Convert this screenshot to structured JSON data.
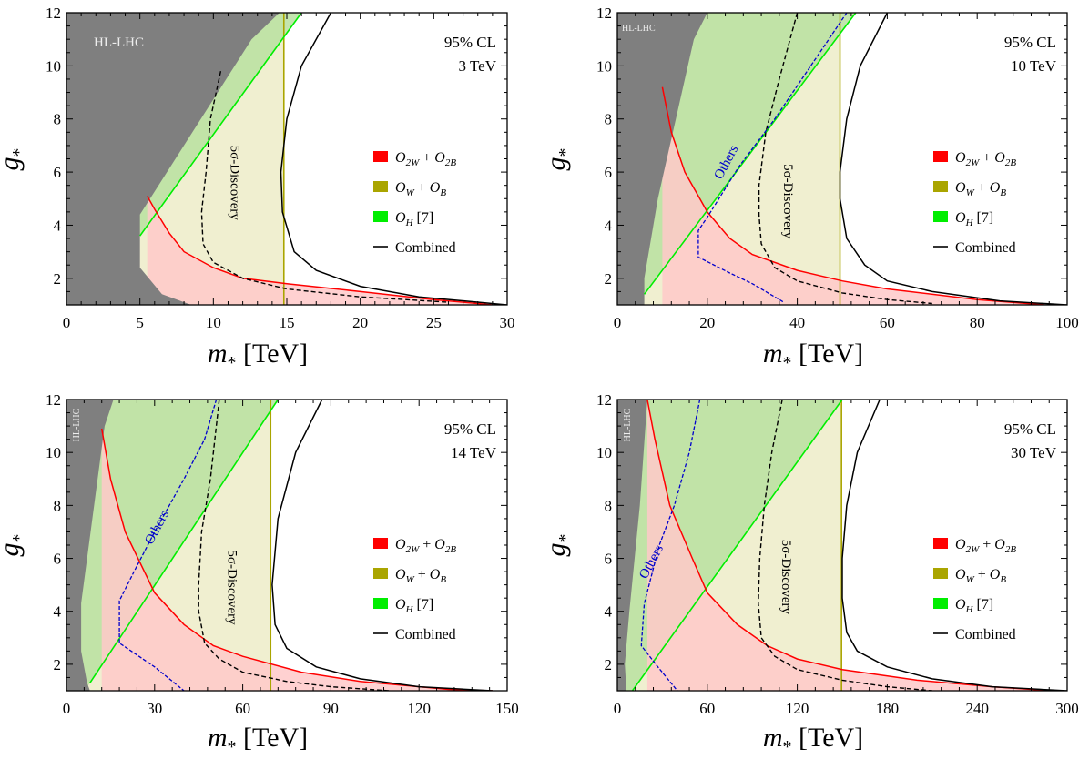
{
  "colors": {
    "hl_lhc": "#7f7f7f",
    "o2w_o2b": "#ff0000",
    "o2w_fill": "#ffc9c9",
    "ow_ob": "#aaa500",
    "ow_fill": "#f0efd0",
    "oh": "#00ee00",
    "oh_fill": "#b8e0a0",
    "combined": "#000000",
    "others": "#0000cc"
  },
  "chart_data": [
    {
      "type": "area",
      "energy": "3 TeV",
      "cl": "95% CL",
      "hl_lhc_label": "HL-LHC",
      "hl_lhc_label_vertical": false,
      "xlabel": "m_* [TeV]",
      "ylabel": "g_*",
      "xlim": [
        0,
        30
      ],
      "ylim": [
        1,
        12
      ],
      "xticks": [
        0,
        5,
        10,
        15,
        20,
        25,
        30
      ],
      "yticks": [
        2,
        4,
        6,
        8,
        10,
        12
      ],
      "legend": {
        "o2w": {
          "a": "O",
          "a_sub": "2W",
          "b": "O",
          "b_sub": "2B"
        },
        "ow": {
          "a": "O",
          "a_sub": "W",
          "b": "O",
          "b_sub": "B"
        },
        "oh": {
          "a": "O",
          "a_sub": "H",
          "ref": "[7]"
        },
        "combined": "Combined"
      },
      "discovery_label": "5σ-Discovery",
      "others_label": "",
      "discovery_label_pos": [
        11.2,
        5.6
      ],
      "others_label_pos": [],
      "hl_lhc_region": [
        [
          0,
          1
        ],
        [
          0,
          12
        ],
        [
          14.5,
          12
        ],
        [
          12.6,
          11
        ],
        [
          5,
          4.4
        ],
        [
          5,
          2.4
        ],
        [
          6.5,
          1.4
        ],
        [
          8.5,
          1
        ]
      ],
      "ow_limit": 14.8,
      "o2w_curve": [
        [
          5.5,
          5.1
        ],
        [
          6,
          4.6
        ],
        [
          7,
          3.7
        ],
        [
          8,
          3.0
        ],
        [
          10,
          2.4
        ],
        [
          12,
          2.0
        ],
        [
          15,
          1.8
        ],
        [
          20,
          1.5
        ],
        [
          25,
          1.2
        ],
        [
          29,
          1.0
        ]
      ],
      "oh_line": [
        [
          5,
          3.6
        ],
        [
          16,
          12
        ]
      ],
      "combined_curve": [
        [
          18,
          12
        ],
        [
          16,
          10
        ],
        [
          15,
          8
        ],
        [
          14.6,
          6
        ],
        [
          14.7,
          4.5
        ],
        [
          15.5,
          3
        ],
        [
          17,
          2.3
        ],
        [
          20,
          1.7
        ],
        [
          24,
          1.3
        ],
        [
          30,
          1.0
        ]
      ],
      "discovery_curve": [
        [
          10.5,
          9.8
        ],
        [
          9.8,
          8
        ],
        [
          9.5,
          6
        ],
        [
          9.2,
          4.5
        ],
        [
          9.3,
          3.3
        ],
        [
          10,
          2.6
        ],
        [
          12,
          2
        ],
        [
          15,
          1.6
        ],
        [
          20,
          1.3
        ],
        [
          26,
          1.1
        ]
      ],
      "others_curve": []
    },
    {
      "type": "area",
      "energy": "10 TeV",
      "cl": "95% CL",
      "hl_lhc_label": "HL-LHC",
      "hl_lhc_label_vertical": false,
      "xlabel": "m_* [TeV]",
      "ylabel": "g_*",
      "xlim": [
        0,
        100
      ],
      "ylim": [
        1,
        12
      ],
      "xticks": [
        0,
        20,
        40,
        60,
        80,
        100
      ],
      "yticks": [
        2,
        4,
        6,
        8,
        10,
        12
      ],
      "legend": {
        "o2w": {
          "a": "O",
          "a_sub": "2W",
          "b": "O",
          "b_sub": "2B"
        },
        "ow": {
          "a": "O",
          "a_sub": "W",
          "b": "O",
          "b_sub": "B"
        },
        "oh": {
          "a": "O",
          "a_sub": "H",
          "ref": "[7]"
        },
        "combined": "Combined"
      },
      "discovery_label": "5σ-Discovery",
      "others_label": "Others",
      "discovery_label_pos": [
        37,
        4.9
      ],
      "others_label_pos": [
        25,
        6.3
      ],
      "hl_lhc_region": [
        [
          0,
          1
        ],
        [
          0,
          12
        ],
        [
          20,
          12
        ],
        [
          17,
          11
        ],
        [
          9,
          5
        ],
        [
          6,
          2
        ],
        [
          6,
          1
        ]
      ],
      "ow_limit": 49.5,
      "o2w_curve": [
        [
          10,
          9.2
        ],
        [
          12,
          7.5
        ],
        [
          15,
          6
        ],
        [
          20,
          4.5
        ],
        [
          25,
          3.5
        ],
        [
          30,
          2.9
        ],
        [
          40,
          2.3
        ],
        [
          50,
          1.9
        ],
        [
          60,
          1.6
        ],
        [
          80,
          1.2
        ],
        [
          95,
          1.0
        ]
      ],
      "oh_line": [
        [
          6,
          1.4
        ],
        [
          53,
          12
        ]
      ],
      "combined_curve": [
        [
          60,
          12
        ],
        [
          54,
          10
        ],
        [
          51,
          8
        ],
        [
          49.5,
          6
        ],
        [
          49.5,
          5
        ],
        [
          51,
          3.5
        ],
        [
          55,
          2.5
        ],
        [
          60,
          1.9
        ],
        [
          70,
          1.5
        ],
        [
          85,
          1.15
        ],
        [
          100,
          1.0
        ]
      ],
      "discovery_curve": [
        [
          40,
          12
        ],
        [
          36,
          9.5
        ],
        [
          33,
          7.5
        ],
        [
          31.5,
          5.5
        ],
        [
          31.5,
          4.4
        ],
        [
          32,
          3.3
        ],
        [
          35,
          2.4
        ],
        [
          40,
          1.9
        ],
        [
          50,
          1.45
        ],
        [
          60,
          1.2
        ],
        [
          70,
          1.05
        ]
      ],
      "others_curve": [
        [
          51,
          12
        ],
        [
          45,
          10.5
        ],
        [
          35,
          8
        ],
        [
          27,
          6.2
        ],
        [
          20,
          4.3
        ],
        [
          18,
          3.8
        ],
        [
          18,
          2.8
        ],
        [
          25,
          2.2
        ],
        [
          30,
          1.8
        ],
        [
          37,
          1.1
        ]
      ]
    },
    {
      "type": "area",
      "energy": "14 TeV",
      "cl": "95% CL",
      "hl_lhc_label": "HL-LHC",
      "hl_lhc_label_vertical": true,
      "xlabel": "m_* [TeV]",
      "ylabel": "g_*",
      "xlim": [
        0,
        150
      ],
      "ylim": [
        1,
        12
      ],
      "xticks": [
        0,
        30,
        60,
        90,
        120,
        150
      ],
      "yticks": [
        2,
        4,
        6,
        8,
        10,
        12
      ],
      "legend": {
        "o2w": {
          "a": "O",
          "a_sub": "2W",
          "b": "O",
          "b_sub": "2B"
        },
        "ow": {
          "a": "O",
          "a_sub": "W",
          "b": "O",
          "b_sub": "B"
        },
        "oh": {
          "a": "O",
          "a_sub": "H",
          "ref": "[7]"
        },
        "combined": "Combined"
      },
      "discovery_label": "5σ-Discovery",
      "others_label": "Others",
      "discovery_label_pos": [
        55,
        4.9
      ],
      "others_label_pos": [
        32,
        7.1
      ],
      "hl_lhc_region": [
        [
          0,
          1
        ],
        [
          0,
          12
        ],
        [
          16,
          12
        ],
        [
          13,
          11
        ],
        [
          5,
          4.3
        ],
        [
          5,
          2.5
        ],
        [
          7,
          1.3
        ],
        [
          8,
          1
        ]
      ],
      "ow_limit": 69.5,
      "o2w_curve": [
        [
          12,
          10.9
        ],
        [
          15,
          9
        ],
        [
          20,
          7
        ],
        [
          30,
          4.7
        ],
        [
          40,
          3.5
        ],
        [
          50,
          2.7
        ],
        [
          60,
          2.3
        ],
        [
          80,
          1.7
        ],
        [
          100,
          1.35
        ],
        [
          130,
          1.05
        ],
        [
          145,
          1.0
        ]
      ],
      "oh_line": [
        [
          8,
          1.3
        ],
        [
          72,
          12
        ]
      ],
      "combined_curve": [
        [
          87,
          12
        ],
        [
          78,
          10
        ],
        [
          72,
          7.5
        ],
        [
          70,
          5
        ],
        [
          71,
          3.5
        ],
        [
          75,
          2.6
        ],
        [
          85,
          1.9
        ],
        [
          100,
          1.45
        ],
        [
          120,
          1.15
        ],
        [
          145,
          1.0
        ]
      ],
      "discovery_curve": [
        [
          52,
          12
        ],
        [
          49,
          9
        ],
        [
          46,
          7
        ],
        [
          45,
          5
        ],
        [
          45,
          4
        ],
        [
          47,
          2.8
        ],
        [
          52,
          2.2
        ],
        [
          60,
          1.7
        ],
        [
          75,
          1.35
        ],
        [
          90,
          1.15
        ],
        [
          110,
          1.0
        ]
      ],
      "others_curve": [
        [
          51,
          12
        ],
        [
          47,
          10.5
        ],
        [
          40,
          9
        ],
        [
          30,
          7
        ],
        [
          23,
          5.5
        ],
        [
          18,
          4.4
        ],
        [
          18,
          2.8
        ],
        [
          30,
          1.9
        ],
        [
          40,
          1.0
        ]
      ]
    },
    {
      "type": "area",
      "energy": "30 TeV",
      "cl": "95% CL",
      "hl_lhc_label": "HL-LHC",
      "hl_lhc_label_vertical": true,
      "xlabel": "m_* [TeV]",
      "ylabel": "g_*",
      "xlim": [
        0,
        300
      ],
      "ylim": [
        1,
        12
      ],
      "xticks": [
        0,
        60,
        120,
        180,
        240,
        300
      ],
      "yticks": [
        2,
        4,
        6,
        8,
        10,
        12
      ],
      "legend": {
        "o2w": {
          "a": "O",
          "a_sub": "2W",
          "b": "O",
          "b_sub": "2B"
        },
        "ow": {
          "a": "O",
          "a_sub": "W",
          "b": "O",
          "b_sub": "B"
        },
        "oh": {
          "a": "O",
          "a_sub": "H",
          "ref": "[7]"
        },
        "combined": "Combined"
      },
      "discovery_label": "5σ-Discovery",
      "others_label": "Others",
      "discovery_label_pos": [
        110,
        5.3
      ],
      "others_label_pos": [
        25,
        5.8
      ],
      "hl_lhc_region": [
        [
          0,
          1
        ],
        [
          0,
          12
        ],
        [
          20,
          12
        ],
        [
          15,
          8
        ],
        [
          8,
          4
        ],
        [
          5,
          2
        ],
        [
          6,
          1
        ]
      ],
      "ow_limit": 149.5,
      "o2w_curve": [
        [
          20,
          12
        ],
        [
          25,
          10.5
        ],
        [
          35,
          8
        ],
        [
          50,
          6
        ],
        [
          60,
          4.7
        ],
        [
          80,
          3.5
        ],
        [
          100,
          2.7
        ],
        [
          120,
          2.2
        ],
        [
          150,
          1.8
        ],
        [
          200,
          1.4
        ],
        [
          250,
          1.15
        ],
        [
          290,
          1.0
        ]
      ],
      "oh_line": [
        [
          10,
          1
        ],
        [
          150,
          12
        ]
      ],
      "combined_curve": [
        [
          175,
          12
        ],
        [
          160,
          10
        ],
        [
          153,
          8
        ],
        [
          150,
          6
        ],
        [
          150,
          4.5
        ],
        [
          153,
          3.2
        ],
        [
          160,
          2.5
        ],
        [
          180,
          1.9
        ],
        [
          210,
          1.45
        ],
        [
          250,
          1.15
        ],
        [
          300,
          1.0
        ]
      ],
      "discovery_curve": [
        [
          110,
          12
        ],
        [
          103,
          10
        ],
        [
          98,
          8
        ],
        [
          95,
          6
        ],
        [
          94,
          4.3
        ],
        [
          96,
          3
        ],
        [
          105,
          2.3
        ],
        [
          120,
          1.8
        ],
        [
          150,
          1.4
        ],
        [
          180,
          1.15
        ],
        [
          210,
          1.0
        ]
      ],
      "others_curve": [
        [
          55,
          12
        ],
        [
          48,
          10
        ],
        [
          38,
          8
        ],
        [
          28,
          6.5
        ],
        [
          18,
          4.3
        ],
        [
          16,
          2.7
        ],
        [
          27,
          1.9
        ],
        [
          40,
          1.0
        ]
      ]
    }
  ]
}
